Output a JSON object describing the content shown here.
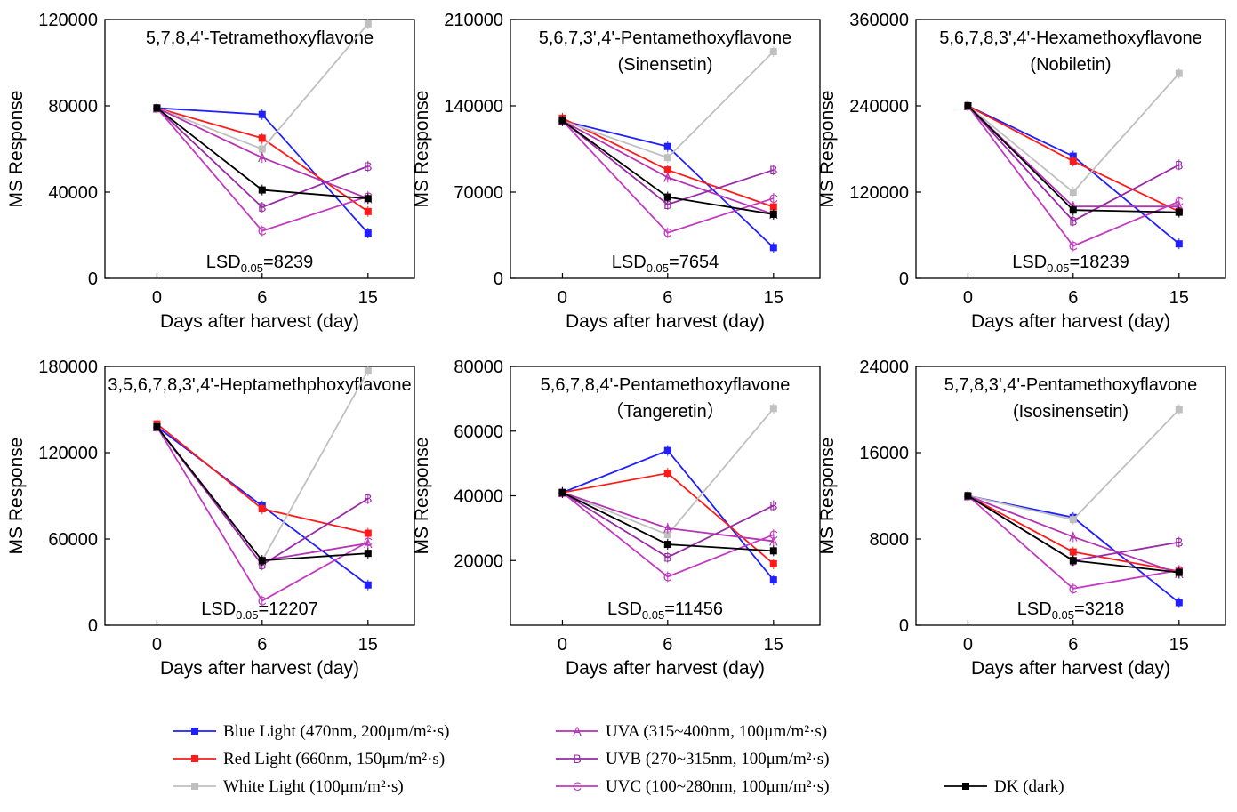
{
  "series_styles": [
    {
      "key": "blue",
      "color": "#1f1fff",
      "marker": "square-filled"
    },
    {
      "key": "red",
      "color": "#ff1a1a",
      "marker": "square-filled"
    },
    {
      "key": "white",
      "color": "#c0c0c0",
      "marker": "square-filled"
    },
    {
      "key": "uva",
      "color": "#b533b5",
      "marker": "letter-A"
    },
    {
      "key": "uvb",
      "color": "#9a2aa6",
      "marker": "letter-B"
    },
    {
      "key": "uvc",
      "color": "#c23ac2",
      "marker": "letter-C"
    },
    {
      "key": "dk",
      "color": "#000000",
      "marker": "square-filled"
    }
  ],
  "legend": {
    "items": [
      {
        "key": "blue",
        "text": "Blue Light (470nm, 200μm/m²·s)"
      },
      {
        "key": "red",
        "text": "Red Light (660nm, 150μm/m²·s)"
      },
      {
        "key": "white",
        "text": "White Light (100μm/m²·s)"
      },
      {
        "key": "uva",
        "text": "UVA (315~400nm, 100μm/m²·s)"
      },
      {
        "key": "uvb",
        "text": "UVB (270~315nm, 100μm/m²·s)"
      },
      {
        "key": "uvc",
        "text": "UVC (100~280nm, 100μm/m²·s)"
      },
      {
        "key": "dk",
        "text": "DK (dark)"
      }
    ]
  },
  "chart_data": [
    {
      "type": "line",
      "title": [
        "5,7,8,4'-Tetramethoxyflavone"
      ],
      "xlabel": "Days after harvest (day)",
      "ylabel": "MS Response",
      "x": [
        0,
        6,
        15
      ],
      "ylim": [
        0,
        120000
      ],
      "yticks": [
        "0",
        "40000",
        "80000",
        "120000"
      ],
      "lsd": {
        "prefix": "LSD",
        "sub": "0.05",
        "value": "=8239"
      },
      "series": [
        {
          "key": "blue",
          "values": [
            79000,
            76000,
            21000
          ]
        },
        {
          "key": "red",
          "values": [
            79000,
            65000,
            31000
          ]
        },
        {
          "key": "white",
          "values": [
            79000,
            60000,
            118000
          ]
        },
        {
          "key": "uva",
          "values": [
            79000,
            56000,
            37000
          ]
        },
        {
          "key": "uvb",
          "values": [
            79000,
            33000,
            52000
          ]
        },
        {
          "key": "uvc",
          "values": [
            79000,
            22000,
            38000
          ]
        },
        {
          "key": "dk",
          "values": [
            79000,
            41000,
            37000
          ]
        }
      ]
    },
    {
      "type": "line",
      "title": [
        "5,6,7,3',4'-Pentamethoxyflavone",
        "(Sinensetin)"
      ],
      "xlabel": "Days after harvest (day)",
      "ylabel": "MS Response",
      "x": [
        0,
        6,
        15
      ],
      "ylim": [
        0,
        210000
      ],
      "yticks": [
        "0",
        "70000",
        "140000",
        "210000"
      ],
      "lsd": {
        "prefix": "LSD",
        "sub": "0.05",
        "value": "=7654"
      },
      "series": [
        {
          "key": "blue",
          "values": [
            128000,
            107000,
            25000
          ]
        },
        {
          "key": "red",
          "values": [
            130000,
            88000,
            58000
          ]
        },
        {
          "key": "white",
          "values": [
            128000,
            98000,
            184000
          ]
        },
        {
          "key": "uva",
          "values": [
            128000,
            82000,
            52000
          ]
        },
        {
          "key": "uvb",
          "values": [
            128000,
            60000,
            88000
          ]
        },
        {
          "key": "uvc",
          "values": [
            128000,
            37000,
            65000
          ]
        },
        {
          "key": "dk",
          "values": [
            128000,
            66000,
            52000
          ]
        }
      ]
    },
    {
      "type": "line",
      "title": [
        "5,6,7,8,3',4'-Hexamethoxyflavone",
        "(Nobiletin)"
      ],
      "xlabel": "Days after harvest (day)",
      "ylabel": "MS Response",
      "x": [
        0,
        6,
        15
      ],
      "ylim": [
        0,
        360000
      ],
      "yticks": [
        "0",
        "120000",
        "240000",
        "360000"
      ],
      "lsd": {
        "prefix": "LSD",
        "sub": "0.05",
        "value": "=18239"
      },
      "series": [
        {
          "key": "blue",
          "values": [
            240000,
            170000,
            48000
          ]
        },
        {
          "key": "red",
          "values": [
            240000,
            163000,
            93000
          ]
        },
        {
          "key": "white",
          "values": [
            240000,
            120000,
            285000
          ]
        },
        {
          "key": "uva",
          "values": [
            240000,
            100000,
            100000
          ]
        },
        {
          "key": "uvb",
          "values": [
            240000,
            80000,
            158000
          ]
        },
        {
          "key": "uvc",
          "values": [
            240000,
            45000,
            107000
          ]
        },
        {
          "key": "dk",
          "values": [
            240000,
            95000,
            92000
          ]
        }
      ]
    },
    {
      "type": "line",
      "title": [
        "3,5,6,7,8,3',4'-Heptamethphoxyflavone"
      ],
      "xlabel": "Days after harvest (day)",
      "ylabel": "MS Response",
      "x": [
        0,
        6,
        15
      ],
      "ylim": [
        0,
        180000
      ],
      "yticks": [
        "0",
        "60000",
        "120000",
        "180000"
      ],
      "lsd": {
        "prefix": "LSD",
        "sub": "0.05",
        "value": "=12207"
      },
      "series": [
        {
          "key": "blue",
          "values": [
            138000,
            83000,
            28000
          ]
        },
        {
          "key": "red",
          "values": [
            140000,
            81000,
            64000
          ]
        },
        {
          "key": "white",
          "values": [
            138000,
            45000,
            177000
          ]
        },
        {
          "key": "uva",
          "values": [
            138000,
            45000,
            57000
          ]
        },
        {
          "key": "uvb",
          "values": [
            138000,
            42000,
            88000
          ]
        },
        {
          "key": "uvc",
          "values": [
            138000,
            17000,
            58000
          ]
        },
        {
          "key": "dk",
          "values": [
            138000,
            45000,
            50000
          ]
        }
      ]
    },
    {
      "type": "line",
      "title": [
        "5,6,7,8,4'-Pentamethoxyflavone",
        "（Tangeretin）"
      ],
      "xlabel": "Days after harvest (day)",
      "ylabel": "MS Response",
      "x": [
        0,
        6,
        15
      ],
      "ylim": [
        0,
        80000
      ],
      "yticks": [
        "20000",
        "40000",
        "60000",
        "80000"
      ],
      "lsd": {
        "prefix": "LSD",
        "sub": "0.05",
        "value": "=11456"
      },
      "series": [
        {
          "key": "blue",
          "values": [
            41000,
            54000,
            14000
          ]
        },
        {
          "key": "red",
          "values": [
            41000,
            47000,
            19000
          ]
        },
        {
          "key": "white",
          "values": [
            41000,
            28000,
            67000
          ]
        },
        {
          "key": "uva",
          "values": [
            41000,
            30000,
            26000
          ]
        },
        {
          "key": "uvb",
          "values": [
            41000,
            21000,
            37000
          ]
        },
        {
          "key": "uvc",
          "values": [
            41000,
            15000,
            28000
          ]
        },
        {
          "key": "dk",
          "values": [
            41000,
            25000,
            23000
          ]
        }
      ]
    },
    {
      "type": "line",
      "title": [
        "5,7,8,3',4'-Pentamethoxyflavone",
        "(Isosinensetin)"
      ],
      "xlabel": "Days after harvest (day)",
      "ylabel": "MS Response",
      "x": [
        0,
        6,
        15
      ],
      "ylim": [
        0,
        24000
      ],
      "yticks": [
        "0",
        "8000",
        "16000",
        "24000"
      ],
      "lsd": {
        "prefix": "LSD",
        "sub": "0.05",
        "value": "=3218"
      },
      "series": [
        {
          "key": "blue",
          "values": [
            12000,
            10000,
            2100
          ]
        },
        {
          "key": "red",
          "values": [
            12000,
            6800,
            5000
          ]
        },
        {
          "key": "white",
          "values": [
            12000,
            9800,
            20000
          ]
        },
        {
          "key": "uva",
          "values": [
            12000,
            8200,
            4800
          ]
        },
        {
          "key": "uvb",
          "values": [
            12000,
            6000,
            7700
          ]
        },
        {
          "key": "uvc",
          "values": [
            12000,
            3400,
            5100
          ]
        },
        {
          "key": "dk",
          "values": [
            12000,
            6000,
            4900
          ]
        }
      ]
    }
  ]
}
